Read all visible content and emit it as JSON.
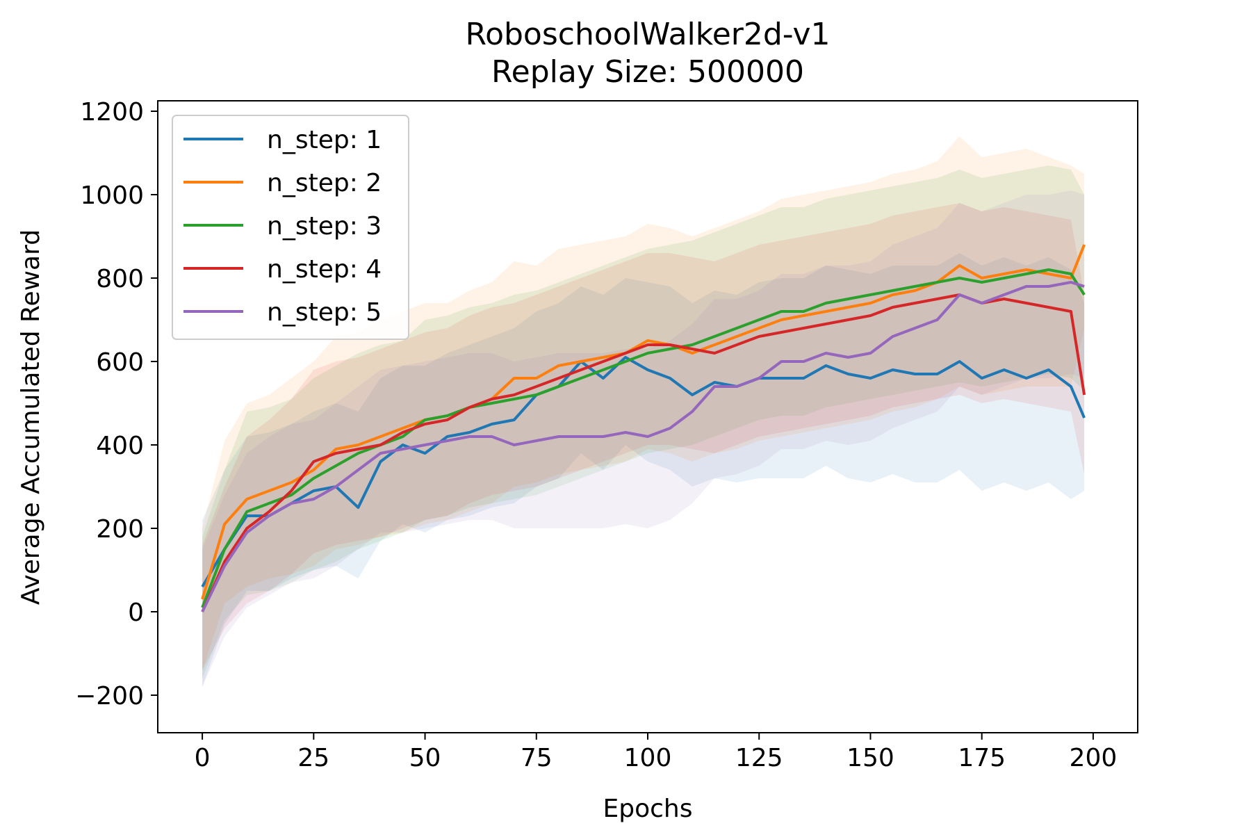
{
  "chart_data": {
    "type": "line",
    "title": [
      "RoboschoolWalker2d-v1",
      "Replay Size: 500000"
    ],
    "xlabel": "Epochs",
    "ylabel": "Average Accumulated Reward",
    "xlim": [
      -10,
      210
    ],
    "ylim": [
      -290,
      1225
    ],
    "x_ticks": [
      0,
      25,
      50,
      75,
      100,
      125,
      150,
      175,
      200
    ],
    "y_ticks": [
      -200,
      0,
      200,
      400,
      600,
      800,
      1000,
      1200
    ],
    "x_tick_labels": [
      "0",
      "25",
      "50",
      "75",
      "100",
      "125",
      "150",
      "175",
      "200"
    ],
    "y_tick_labels": [
      "−200",
      "0",
      "200",
      "400",
      "600",
      "800",
      "1000",
      "1200"
    ],
    "grid": false,
    "legend_position": "top-left",
    "shaded_bands": true,
    "x": [
      0,
      5,
      10,
      15,
      20,
      25,
      30,
      35,
      40,
      45,
      50,
      55,
      60,
      65,
      70,
      75,
      80,
      85,
      90,
      95,
      100,
      105,
      110,
      115,
      120,
      125,
      130,
      135,
      140,
      145,
      150,
      155,
      160,
      165,
      170,
      175,
      180,
      185,
      190,
      195,
      198
    ],
    "series": [
      {
        "name": "n_step: 1",
        "color": "#1f77b4",
        "values": [
          60,
          150,
          230,
          230,
          260,
          290,
          300,
          250,
          360,
          400,
          380,
          420,
          430,
          450,
          460,
          520,
          540,
          600,
          560,
          610,
          580,
          560,
          520,
          550,
          540,
          560,
          560,
          560,
          590,
          570,
          560,
          580,
          570,
          570,
          600,
          560,
          580,
          560,
          580,
          540,
          465
        ],
        "upper": [
          220,
          340,
          420,
          430,
          450,
          480,
          500,
          480,
          560,
          590,
          590,
          620,
          640,
          660,
          680,
          720,
          740,
          780,
          760,
          800,
          790,
          780,
          740,
          770,
          760,
          790,
          800,
          800,
          830,
          820,
          810,
          830,
          830,
          830,
          860,
          830,
          850,
          830,
          850,
          820,
          740
        ],
        "lower": [
          -180,
          -30,
          50,
          50,
          80,
          100,
          110,
          80,
          170,
          210,
          190,
          220,
          230,
          250,
          260,
          300,
          320,
          380,
          340,
          400,
          360,
          340,
          300,
          320,
          310,
          320,
          320,
          320,
          350,
          320,
          310,
          330,
          310,
          310,
          340,
          290,
          310,
          290,
          310,
          270,
          290
        ]
      },
      {
        "name": "n_step: 2",
        "color": "#ff7f0e",
        "values": [
          30,
          210,
          270,
          290,
          310,
          340,
          390,
          400,
          420,
          440,
          460,
          470,
          490,
          510,
          560,
          560,
          590,
          600,
          610,
          620,
          650,
          640,
          620,
          640,
          660,
          680,
          700,
          710,
          720,
          730,
          740,
          760,
          770,
          790,
          830,
          800,
          810,
          820,
          810,
          800,
          880
        ],
        "upper": [
          200,
          410,
          500,
          520,
          560,
          600,
          660,
          670,
          700,
          720,
          740,
          740,
          770,
          790,
          840,
          830,
          870,
          880,
          890,
          900,
          930,
          920,
          900,
          920,
          940,
          960,
          990,
          1000,
          1010,
          1020,
          1030,
          1050,
          1060,
          1080,
          1140,
          1090,
          1100,
          1110,
          1090,
          1070,
          1050
        ],
        "lower": [
          -140,
          20,
          60,
          80,
          90,
          110,
          150,
          160,
          180,
          190,
          210,
          220,
          240,
          260,
          300,
          310,
          330,
          340,
          350,
          360,
          390,
          380,
          360,
          380,
          390,
          410,
          420,
          430,
          440,
          450,
          460,
          480,
          490,
          510,
          540,
          520,
          530,
          540,
          540,
          540,
          680
        ]
      },
      {
        "name": "n_step: 3",
        "color": "#2ca02c",
        "values": [
          10,
          150,
          240,
          260,
          280,
          320,
          350,
          380,
          400,
          420,
          460,
          470,
          490,
          500,
          510,
          520,
          540,
          560,
          580,
          600,
          620,
          630,
          640,
          660,
          680,
          700,
          720,
          720,
          740,
          750,
          760,
          770,
          780,
          790,
          800,
          790,
          800,
          810,
          820,
          810,
          760
        ],
        "upper": [
          180,
          340,
          480,
          490,
          510,
          560,
          590,
          620,
          640,
          650,
          700,
          710,
          730,
          740,
          760,
          770,
          790,
          810,
          830,
          850,
          870,
          880,
          890,
          910,
          930,
          950,
          970,
          970,
          990,
          1000,
          1010,
          1020,
          1030,
          1040,
          1060,
          1040,
          1050,
          1060,
          1070,
          1060,
          1000
        ],
        "lower": [
          -160,
          -20,
          40,
          50,
          70,
          100,
          120,
          150,
          170,
          190,
          220,
          230,
          250,
          260,
          270,
          280,
          300,
          320,
          340,
          360,
          380,
          390,
          400,
          420,
          440,
          460,
          470,
          470,
          490,
          500,
          510,
          520,
          530,
          540,
          550,
          540,
          550,
          560,
          570,
          560,
          530
        ]
      },
      {
        "name": "n_step: 4",
        "color": "#d62728",
        "values": [
          0,
          120,
          200,
          240,
          290,
          360,
          380,
          390,
          400,
          430,
          450,
          460,
          490,
          510,
          520,
          540,
          560,
          580,
          600,
          620,
          640,
          640,
          630,
          620,
          640,
          660,
          670,
          680,
          690,
          700,
          710,
          730,
          740,
          750,
          760,
          740,
          750,
          740,
          730,
          720,
          520
        ],
        "upper": [
          160,
          300,
          420,
          460,
          510,
          580,
          600,
          610,
          630,
          650,
          670,
          680,
          710,
          730,
          740,
          760,
          780,
          800,
          820,
          840,
          860,
          860,
          850,
          840,
          860,
          880,
          890,
          900,
          910,
          920,
          930,
          950,
          960,
          970,
          980,
          960,
          970,
          960,
          950,
          940,
          760
        ],
        "lower": [
          -140,
          -40,
          20,
          50,
          90,
          140,
          160,
          170,
          180,
          200,
          220,
          230,
          260,
          280,
          290,
          300,
          320,
          340,
          360,
          380,
          400,
          400,
          390,
          380,
          400,
          420,
          430,
          440,
          450,
          460,
          470,
          490,
          500,
          510,
          520,
          500,
          510,
          500,
          490,
          480,
          330
        ]
      },
      {
        "name": "n_step: 5",
        "color": "#9467bd",
        "values": [
          0,
          110,
          190,
          230,
          260,
          270,
          300,
          340,
          380,
          390,
          400,
          410,
          420,
          420,
          400,
          410,
          420,
          420,
          420,
          430,
          420,
          440,
          480,
          540,
          540,
          560,
          600,
          600,
          620,
          610,
          620,
          660,
          680,
          700,
          760,
          740,
          760,
          780,
          780,
          790,
          780
        ],
        "upper": [
          150,
          280,
          380,
          420,
          450,
          460,
          500,
          540,
          580,
          590,
          600,
          610,
          620,
          620,
          600,
          610,
          620,
          620,
          620,
          630,
          630,
          650,
          690,
          750,
          750,
          770,
          810,
          810,
          830,
          830,
          840,
          880,
          900,
          920,
          980,
          960,
          980,
          1000,
          1000,
          1010,
          1000
        ],
        "lower": [
          -180,
          -60,
          10,
          40,
          70,
          80,
          110,
          150,
          190,
          190,
          200,
          210,
          220,
          220,
          200,
          200,
          200,
          200,
          200,
          210,
          200,
          220,
          260,
          320,
          330,
          350,
          390,
          390,
          410,
          400,
          410,
          440,
          460,
          480,
          540,
          520,
          540,
          560,
          560,
          570,
          560
        ]
      }
    ]
  }
}
